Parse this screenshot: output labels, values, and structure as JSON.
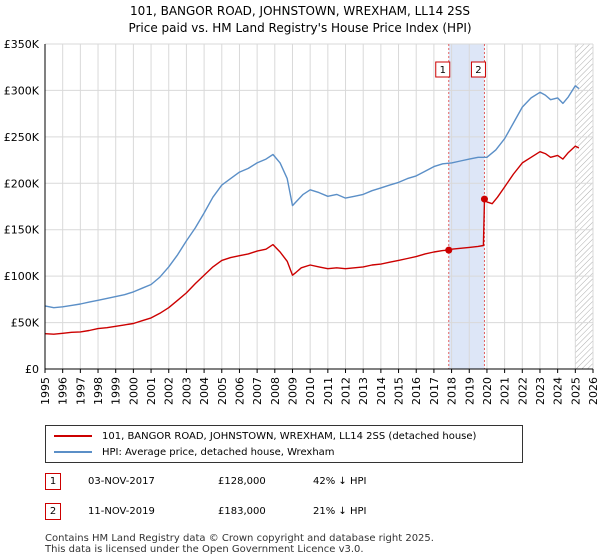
{
  "title_line1": "101, BANGOR ROAD, JOHNSTOWN, WREXHAM, LL14 2SS",
  "title_line2": "Price paid vs. HM Land Registry's House Price Index (HPI)",
  "colors": {
    "property": "#cc0000",
    "hpi": "#5b8fc7",
    "shade": "#dde6f7",
    "hatch": "#888888"
  },
  "chart_data": {
    "type": "line",
    "title": "101, BANGOR ROAD, JOHNSTOWN, WREXHAM, LL14 2SS — Price paid vs. HM Land Registry's House Price Index (HPI)",
    "xlabel": "",
    "ylabel": "",
    "xlim": [
      1995,
      2026
    ],
    "ylim": [
      0,
      350000
    ],
    "x_ticks": [
      1995,
      1996,
      1997,
      1998,
      1999,
      2000,
      2001,
      2002,
      2003,
      2004,
      2005,
      2006,
      2007,
      2008,
      2009,
      2010,
      2011,
      2012,
      2013,
      2014,
      2015,
      2016,
      2017,
      2018,
      2019,
      2020,
      2021,
      2022,
      2023,
      2024,
      2025,
      2026
    ],
    "y_ticks": [
      {
        "value": 0,
        "label": "£0"
      },
      {
        "value": 50000,
        "label": "£50K"
      },
      {
        "value": 100000,
        "label": "£100K"
      },
      {
        "value": 150000,
        "label": "£150K"
      },
      {
        "value": 200000,
        "label": "£200K"
      },
      {
        "value": 250000,
        "label": "£250K"
      },
      {
        "value": 300000,
        "label": "£300K"
      },
      {
        "value": 350000,
        "label": "£350K"
      }
    ],
    "grid": true,
    "series": [
      {
        "name": "101, BANGOR ROAD, JOHNSTOWN, WREXHAM, LL14 2SS (detached house)",
        "color": "#cc0000",
        "x": [
          1995.0,
          1995.5,
          1996.0,
          1996.5,
          1997.0,
          1997.5,
          1998.0,
          1998.5,
          1999.0,
          1999.5,
          2000.0,
          2000.5,
          2001.0,
          2001.5,
          2002.0,
          2002.5,
          2003.0,
          2003.5,
          2004.0,
          2004.5,
          2005.0,
          2005.5,
          2006.0,
          2006.5,
          2007.0,
          2007.5,
          2007.9,
          2008.3,
          2008.7,
          2009.0,
          2009.2,
          2009.5,
          2010.0,
          2010.5,
          2011.0,
          2011.5,
          2012.0,
          2012.5,
          2013.0,
          2013.5,
          2014.0,
          2014.5,
          2015.0,
          2015.5,
          2016.0,
          2016.5,
          2017.0,
          2017.5,
          2017.84,
          2018.0,
          2018.5,
          2019.0,
          2019.5,
          2019.8,
          2019.86,
          2020.0,
          2020.3,
          2020.6,
          2021.0,
          2021.5,
          2022.0,
          2022.5,
          2023.0,
          2023.3,
          2023.6,
          2024.0,
          2024.3,
          2024.6,
          2025.0,
          2025.2
        ],
        "values": [
          38000,
          37500,
          38500,
          39500,
          40000,
          41500,
          43500,
          44500,
          46000,
          47500,
          49000,
          52000,
          55000,
          60000,
          66000,
          74000,
          82000,
          92000,
          101000,
          110000,
          117000,
          120000,
          122000,
          124000,
          127000,
          129000,
          134000,
          126000,
          116000,
          101000,
          104000,
          109000,
          112000,
          110000,
          108000,
          109000,
          108000,
          109000,
          110000,
          112000,
          113000,
          115000,
          117000,
          119000,
          121000,
          124000,
          126000,
          127500,
          128000,
          129000,
          130000,
          131000,
          132000,
          133000,
          183000,
          180000,
          178000,
          185000,
          196000,
          210000,
          222000,
          228000,
          234000,
          232000,
          228000,
          230000,
          226000,
          233000,
          240000,
          238000
        ]
      },
      {
        "name": "HPI: Average price, detached house, Wrexham",
        "color": "#5b8fc7",
        "x": [
          1995.0,
          1995.5,
          1996.0,
          1996.5,
          1997.0,
          1997.5,
          1998.0,
          1998.5,
          1999.0,
          1999.5,
          2000.0,
          2000.5,
          2001.0,
          2001.5,
          2002.0,
          2002.5,
          2003.0,
          2003.5,
          2004.0,
          2004.5,
          2005.0,
          2005.5,
          2006.0,
          2006.5,
          2007.0,
          2007.5,
          2007.9,
          2008.3,
          2008.7,
          2009.0,
          2009.3,
          2009.6,
          2010.0,
          2010.5,
          2011.0,
          2011.5,
          2012.0,
          2012.5,
          2013.0,
          2013.5,
          2014.0,
          2014.5,
          2015.0,
          2015.5,
          2016.0,
          2016.5,
          2017.0,
          2017.5,
          2018.0,
          2018.5,
          2019.0,
          2019.5,
          2020.0,
          2020.5,
          2021.0,
          2021.5,
          2022.0,
          2022.5,
          2023.0,
          2023.3,
          2023.6,
          2024.0,
          2024.3,
          2024.6,
          2025.0,
          2025.2
        ],
        "values": [
          68000,
          66000,
          67000,
          68500,
          70000,
          72000,
          74000,
          76000,
          78000,
          80000,
          83000,
          87000,
          91000,
          99000,
          110000,
          123000,
          138000,
          152000,
          168000,
          185000,
          198000,
          205000,
          212000,
          216000,
          222000,
          226000,
          231000,
          222000,
          205000,
          176000,
          182000,
          188000,
          193000,
          190000,
          186000,
          188000,
          184000,
          186000,
          188000,
          192000,
          195000,
          198000,
          201000,
          205000,
          208000,
          213000,
          218000,
          221000,
          222000,
          224000,
          226000,
          228000,
          228000,
          236000,
          248000,
          265000,
          282000,
          292000,
          298000,
          295000,
          290000,
          292000,
          286000,
          293000,
          305000,
          302000
        ]
      }
    ],
    "sales": [
      {
        "num": "1",
        "date": "03-NOV-2017",
        "x": 2017.84,
        "price_value": 128000,
        "price": "£128,000",
        "hpi_delta": "42% ↓ HPI"
      },
      {
        "num": "2",
        "date": "11-NOV-2019",
        "x": 2019.86,
        "price_value": 183000,
        "price": "£183,000",
        "hpi_delta": "21% ↓ HPI"
      }
    ],
    "shaded_region": [
      2017.84,
      2019.86
    ],
    "forecast_from": 2025.0
  },
  "legend": {
    "property": "101, BANGOR ROAD, JOHNSTOWN, WREXHAM, LL14 2SS (detached house)",
    "hpi": "HPI: Average price, detached house, Wrexham"
  },
  "footer": {
    "line1": "Contains HM Land Registry data © Crown copyright and database right 2025.",
    "line2": "This data is licensed under the Open Government Licence v3.0."
  }
}
